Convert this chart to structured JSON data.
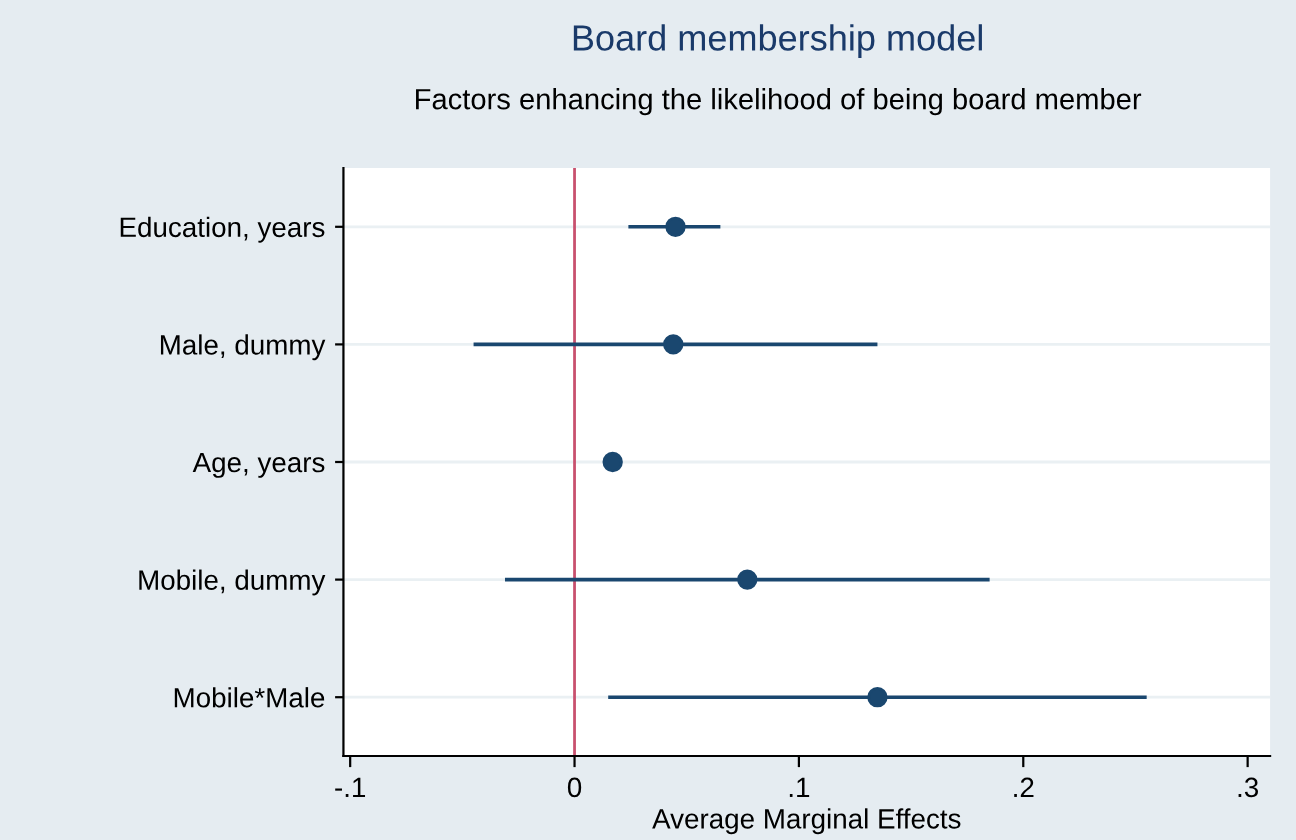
{
  "chart_data": {
    "type": "scatter",
    "title": "Board membership model",
    "subtitle": "Factors enhancing the likelihood of being board member",
    "xlabel": "Average Marginal Effects",
    "orientation": "horizontal",
    "categories": [
      "Education, years",
      "Male, dummy",
      "Age, years",
      "Mobile, dummy",
      "Mobile*Male"
    ],
    "series": [
      {
        "color": "#1a476f",
        "values": [
          0.045,
          0.044,
          0.017,
          0.077,
          0.135
        ],
        "errors": [
          [
            0.024,
            0.065
          ],
          [
            -0.045,
            0.135
          ],
          null,
          [
            -0.031,
            0.185
          ],
          [
            0.015,
            0.255
          ]
        ]
      }
    ],
    "marker": "circle",
    "xlim": [
      -0.103,
      0.31
    ],
    "xticks": [
      {
        "value": -0.1,
        "label": "-.1"
      },
      0,
      {
        "value": 0.1,
        "label": ".1"
      },
      {
        "value": 0.2,
        "label": ".2"
      },
      {
        "value": 0.3,
        "label": ".3"
      }
    ],
    "ref_lines": [
      {
        "axis": "x",
        "value": 0,
        "color": "#c8506e"
      }
    ],
    "grid": "y"
  }
}
